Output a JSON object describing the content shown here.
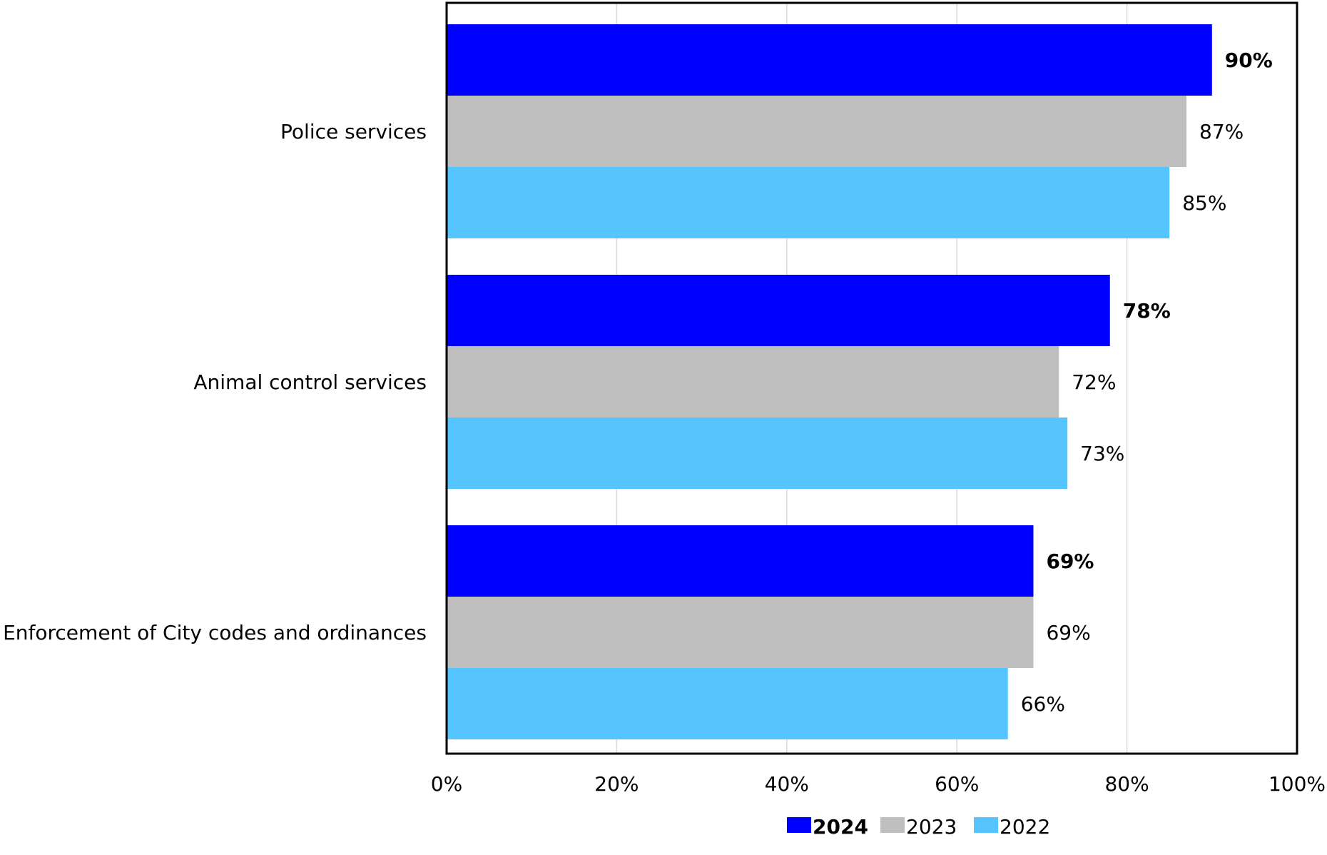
{
  "chart_data": {
    "type": "bar",
    "orientation": "horizontal",
    "title": "",
    "xlabel": "",
    "ylabel": "",
    "xlim": [
      0,
      100
    ],
    "value_unit": "%",
    "ticks": [
      "0%",
      "20%",
      "40%",
      "60%",
      "80%",
      "100%"
    ],
    "tick_values": [
      0,
      20,
      40,
      60,
      80,
      100
    ],
    "grid": true,
    "legend_position": "bottom",
    "categories": [
      "Police services",
      "Animal control services",
      "Enforcement of City codes and ordinances"
    ],
    "series": [
      {
        "name": "2024",
        "values": [
          90,
          78,
          69
        ],
        "labels": [
          "90%",
          "78%",
          "69%"
        ],
        "color": "#0000FF",
        "bold": true
      },
      {
        "name": "2023",
        "values": [
          87,
          72,
          69
        ],
        "labels": [
          "87%",
          "72%",
          "69%"
        ],
        "color": "#BFBFBF",
        "bold": false
      },
      {
        "name": "2022",
        "values": [
          85,
          73,
          66
        ],
        "labels": [
          "85%",
          "73%",
          "66%"
        ],
        "color": "#55C4FF",
        "bold": false
      }
    ]
  }
}
